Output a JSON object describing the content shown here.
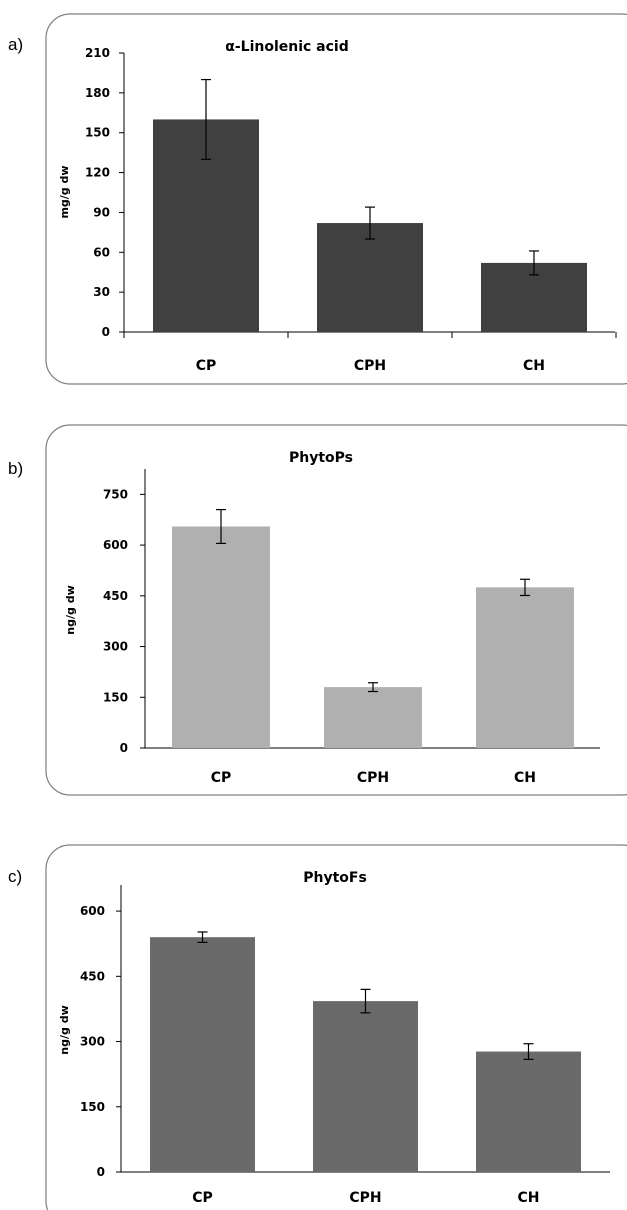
{
  "chart_data": [
    {
      "panel_label": "a)",
      "type": "bar",
      "title": "α-Linolenic acid",
      "ylabel": "mg/g dw",
      "xlabel": "",
      "categories": [
        "CP",
        "CPH",
        "CH"
      ],
      "values": [
        160,
        82,
        52
      ],
      "errors": [
        30,
        12,
        9
      ],
      "ylim": [
        0,
        210
      ],
      "yticks": [
        0,
        30,
        60,
        90,
        120,
        150,
        180,
        210
      ],
      "grid": false,
      "bar_color": "#404040",
      "x_ticks": true
    },
    {
      "panel_label": "b)",
      "type": "bar",
      "title": "PhytoPs",
      "ylabel": "ng/g dw",
      "xlabel": "",
      "categories": [
        "CP",
        "CPH",
        "CH"
      ],
      "values": [
        655,
        180,
        475
      ],
      "errors": [
        50,
        13,
        24
      ],
      "ylim": [
        0,
        825
      ],
      "yticks": [
        0,
        150,
        300,
        450,
        600,
        750
      ],
      "grid": false,
      "bar_color": "#b0b0b0",
      "x_ticks": false
    },
    {
      "panel_label": "c)",
      "type": "bar",
      "title": "PhytoFs",
      "ylabel": "ng/g dw",
      "xlabel": "",
      "categories": [
        "CP",
        "CPH",
        "CH"
      ],
      "values": [
        540,
        393,
        277
      ],
      "errors": [
        12,
        27,
        18
      ],
      "ylim": [
        0,
        660
      ],
      "yticks": [
        0,
        150,
        300,
        450,
        600
      ],
      "grid": false,
      "bar_color": "#6a6a6a",
      "x_ticks": false
    }
  ]
}
